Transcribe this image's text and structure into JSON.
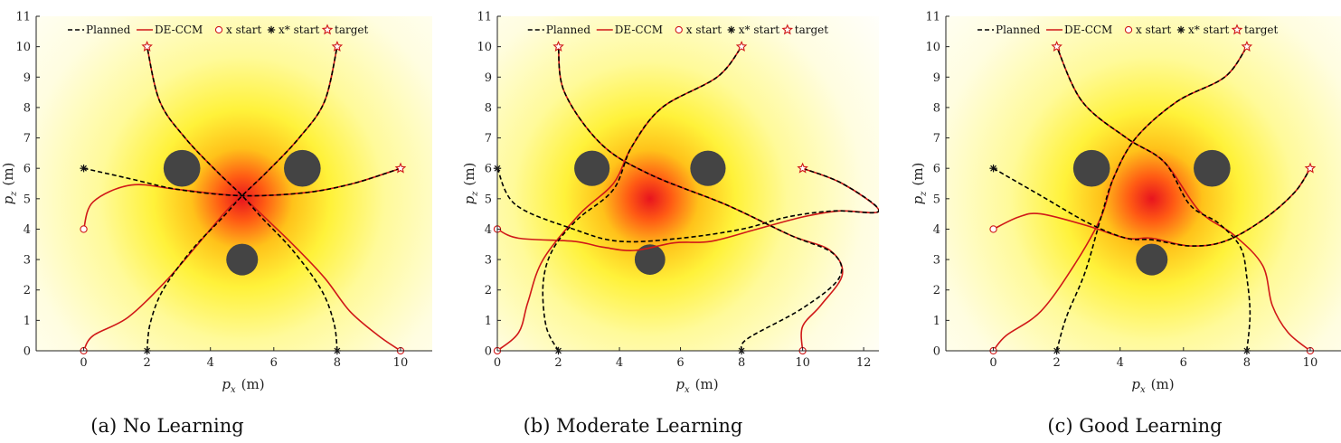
{
  "chart_data": [
    {
      "type": "line",
      "caption": "(a) No Learning",
      "xlabel": {
        "main": "p",
        "sub": "x",
        "unit": "(m)"
      },
      "ylabel": {
        "main": "p",
        "sub": "z",
        "unit": "(m)"
      },
      "xlim": [
        -1.5,
        11
      ],
      "ylim": [
        0,
        11
      ],
      "xticks": [
        "0",
        "2",
        "4",
        "6",
        "8",
        "10"
      ],
      "xtick_values": [
        0,
        2,
        4,
        6,
        8,
        10
      ],
      "yticks": [
        "0",
        "1",
        "2",
        "3",
        "4",
        "5",
        "6",
        "7",
        "8",
        "9",
        "10",
        "11"
      ],
      "legend": {
        "placement": "top",
        "entries": [
          "Planned",
          "DE-CCM",
          "x start",
          "x* start",
          "target"
        ]
      },
      "heat_center": [
        5,
        5
      ],
      "obstacles": [
        {
          "x": 3.1,
          "y": 6,
          "r": 0.58
        },
        {
          "x": 6.9,
          "y": 6,
          "r": 0.58
        },
        {
          "x": 5,
          "y": 3,
          "r": 0.5
        }
      ],
      "targets": [
        [
          2,
          10
        ],
        [
          8,
          10
        ],
        [
          10,
          6
        ]
      ],
      "x_starts": [
        [
          0,
          0
        ],
        [
          0,
          4
        ],
        [
          10,
          0
        ]
      ],
      "xstar_starts": [
        [
          2,
          0
        ],
        [
          8,
          0
        ],
        [
          0,
          6
        ]
      ],
      "planned": [
        [
          [
            2,
            0
          ],
          [
            2.1,
            0.9
          ],
          [
            2.5,
            2
          ],
          [
            3.4,
            3.3
          ],
          [
            4.4,
            4.4
          ],
          [
            5,
            5.1
          ],
          [
            5.8,
            5.9
          ],
          [
            6.8,
            7
          ],
          [
            7.6,
            8.2
          ],
          [
            8,
            10
          ]
        ],
        [
          [
            8,
            0
          ],
          [
            7.9,
            0.9
          ],
          [
            7.5,
            2
          ],
          [
            6.6,
            3.3
          ],
          [
            5.6,
            4.4
          ],
          [
            5,
            5.1
          ],
          [
            4.2,
            5.9
          ],
          [
            3.2,
            7
          ],
          [
            2.4,
            8.2
          ],
          [
            2,
            10
          ]
        ],
        [
          [
            0,
            6
          ],
          [
            1.5,
            5.65
          ],
          [
            3,
            5.3
          ],
          [
            5,
            5.1
          ],
          [
            7,
            5.2
          ],
          [
            8.5,
            5.5
          ],
          [
            10,
            6
          ]
        ]
      ],
      "actual": [
        [
          [
            0,
            0
          ],
          [
            0.3,
            0.5
          ],
          [
            1.4,
            1.1
          ],
          [
            2.6,
            2.3
          ],
          [
            3.6,
            3.5
          ],
          [
            4.5,
            4.6
          ],
          [
            5,
            5.1
          ],
          [
            5.8,
            5.9
          ],
          [
            6.8,
            7
          ],
          [
            7.6,
            8.2
          ],
          [
            8,
            10
          ]
        ],
        [
          [
            10,
            0
          ],
          [
            9.3,
            0.5
          ],
          [
            8.4,
            1.3
          ],
          [
            7.6,
            2.4
          ],
          [
            6.6,
            3.5
          ],
          [
            5.6,
            4.5
          ],
          [
            5,
            5.1
          ],
          [
            4.2,
            5.9
          ],
          [
            3.2,
            7
          ],
          [
            2.4,
            8.2
          ],
          [
            2,
            10
          ]
        ],
        [
          [
            0,
            4
          ],
          [
            0.3,
            4.9
          ],
          [
            1.5,
            5.45
          ],
          [
            3,
            5.3
          ],
          [
            5,
            5.1
          ],
          [
            7,
            5.2
          ],
          [
            8.5,
            5.5
          ],
          [
            10,
            6
          ]
        ]
      ]
    },
    {
      "type": "line",
      "caption": "(b) Moderate Learning",
      "xlabel": {
        "main": "p",
        "sub": "x",
        "unit": "(m)"
      },
      "ylabel": {
        "main": "p",
        "sub": "z",
        "unit": "(m)"
      },
      "xlim": [
        0,
        12.5
      ],
      "ylim": [
        0,
        11
      ],
      "xticks": [
        "0",
        "2",
        "4",
        "6",
        "8",
        "10",
        "12"
      ],
      "xtick_values": [
        0,
        2,
        4,
        6,
        8,
        10,
        12
      ],
      "yticks": [
        "0",
        "1",
        "2",
        "3",
        "4",
        "5",
        "6",
        "7",
        "8",
        "9",
        "10",
        "11"
      ],
      "legend": {
        "placement": "top",
        "entries": [
          "Planned",
          "DE-CCM",
          "x start",
          "x* start",
          "target"
        ]
      },
      "heat_center": [
        5,
        5
      ],
      "obstacles": [
        {
          "x": 3.1,
          "y": 6,
          "r": 0.58
        },
        {
          "x": 6.9,
          "y": 6,
          "r": 0.58
        },
        {
          "x": 5,
          "y": 3,
          "r": 0.5
        }
      ],
      "targets": [
        [
          2,
          10
        ],
        [
          8,
          10
        ],
        [
          10,
          6
        ]
      ],
      "x_starts": [
        [
          0,
          0
        ],
        [
          0,
          4
        ],
        [
          10,
          0
        ]
      ],
      "xstar_starts": [
        [
          2,
          0
        ],
        [
          8,
          0
        ],
        [
          0,
          6
        ]
      ],
      "planned": [
        [
          [
            2,
            0
          ],
          [
            1.6,
            0.8
          ],
          [
            1.5,
            2.2
          ],
          [
            1.8,
            3.3
          ],
          [
            2.6,
            4.3
          ],
          [
            3.8,
            5.3
          ],
          [
            4.4,
            6.7
          ],
          [
            5.4,
            8
          ],
          [
            7.2,
            9
          ],
          [
            8,
            10
          ]
        ],
        [
          [
            8,
            0
          ],
          [
            8.2,
            0.4
          ],
          [
            10,
            1.4
          ],
          [
            11.2,
            2.4
          ],
          [
            11,
            3.2
          ],
          [
            9.6,
            3.8
          ],
          [
            7.5,
            4.8
          ],
          [
            5,
            5.8
          ],
          [
            3.4,
            6.8
          ],
          [
            2.2,
            8.5
          ],
          [
            2,
            10
          ]
        ],
        [
          [
            0,
            6
          ],
          [
            0.6,
            4.8
          ],
          [
            2.5,
            4
          ],
          [
            4,
            3.6
          ],
          [
            6,
            3.7
          ],
          [
            8,
            4.0
          ],
          [
            9.5,
            4.4
          ],
          [
            11,
            4.6
          ],
          [
            12.5,
            4.6
          ],
          [
            11.3,
            5.5
          ],
          [
            10,
            6
          ]
        ]
      ],
      "actual": [
        [
          [
            0,
            0
          ],
          [
            0.7,
            0.6
          ],
          [
            1,
            1.6
          ],
          [
            1.5,
            3
          ],
          [
            2.7,
            4.5
          ],
          [
            3.8,
            5.5
          ],
          [
            4.4,
            6.7
          ],
          [
            5.4,
            8
          ],
          [
            7.2,
            9
          ],
          [
            8,
            10
          ]
        ],
        [
          [
            10,
            0
          ],
          [
            10,
            0.8
          ],
          [
            10.6,
            1.5
          ],
          [
            11.3,
            2.5
          ],
          [
            10.9,
            3.3
          ],
          [
            9.6,
            3.8
          ],
          [
            7.5,
            4.8
          ],
          [
            5,
            5.8
          ],
          [
            3.4,
            6.8
          ],
          [
            2.2,
            8.5
          ],
          [
            2,
            10
          ]
        ],
        [
          [
            0,
            4
          ],
          [
            0.7,
            3.7
          ],
          [
            2.5,
            3.6
          ],
          [
            3.5,
            3.4
          ],
          [
            4.5,
            3.3
          ],
          [
            5.8,
            3.55
          ],
          [
            7,
            3.6
          ],
          [
            8.5,
            4.0
          ],
          [
            10,
            4.4
          ],
          [
            11.2,
            4.6
          ],
          [
            12.5,
            4.6
          ],
          [
            11.3,
            5.5
          ],
          [
            10,
            6
          ]
        ]
      ]
    },
    {
      "type": "line",
      "caption": "(c) Good Learning",
      "xlabel": {
        "main": "p",
        "sub": "x",
        "unit": "(m)"
      },
      "ylabel": {
        "main": "p",
        "sub": "z",
        "unit": "(m)"
      },
      "xlim": [
        -1.5,
        11
      ],
      "ylim": [
        0,
        11
      ],
      "xticks": [
        "0",
        "2",
        "4",
        "6",
        "8",
        "10"
      ],
      "xtick_values": [
        0,
        2,
        4,
        6,
        8,
        10
      ],
      "yticks": [
        "0",
        "1",
        "2",
        "3",
        "4",
        "5",
        "6",
        "7",
        "8",
        "9",
        "10",
        "11"
      ],
      "legend": {
        "placement": "top",
        "entries": [
          "Planned",
          "DE-CCM",
          "x start",
          "x* start",
          "target"
        ]
      },
      "heat_center": [
        5,
        5
      ],
      "obstacles": [
        {
          "x": 3.1,
          "y": 6,
          "r": 0.58
        },
        {
          "x": 6.9,
          "y": 6,
          "r": 0.58
        },
        {
          "x": 5,
          "y": 3,
          "r": 0.5
        }
      ],
      "targets": [
        [
          2,
          10
        ],
        [
          8,
          10
        ],
        [
          10,
          6
        ]
      ],
      "x_starts": [
        [
          0,
          0
        ],
        [
          0,
          4
        ],
        [
          10,
          0
        ]
      ],
      "xstar_starts": [
        [
          2,
          0
        ],
        [
          8,
          0
        ],
        [
          0,
          6
        ]
      ],
      "planned": [
        [
          [
            2,
            0
          ],
          [
            2.3,
            1.1
          ],
          [
            2.9,
            2.6
          ],
          [
            3.4,
            4.4
          ],
          [
            3.8,
            5.7
          ],
          [
            4.5,
            7
          ],
          [
            5.8,
            8.2
          ],
          [
            7.3,
            9
          ],
          [
            8,
            10
          ]
        ],
        [
          [
            8,
            0
          ],
          [
            8.1,
            1.2
          ],
          [
            8.0,
            2.4
          ],
          [
            7.8,
            3.4
          ],
          [
            7.1,
            4.2
          ],
          [
            6.2,
            4.8
          ],
          [
            5.4,
            6.2
          ],
          [
            4.2,
            7
          ],
          [
            2.8,
            8.2
          ],
          [
            2,
            10
          ]
        ],
        [
          [
            0,
            6
          ],
          [
            1.5,
            5.1
          ],
          [
            3,
            4.2
          ],
          [
            4.2,
            3.7
          ],
          [
            5,
            3.65
          ],
          [
            6.2,
            3.45
          ],
          [
            7.3,
            3.6
          ],
          [
            8.5,
            4.3
          ],
          [
            9.5,
            5.2
          ],
          [
            10,
            6
          ]
        ]
      ],
      "actual": [
        [
          [
            0,
            0
          ],
          [
            0.4,
            0.5
          ],
          [
            1.5,
            1.3
          ],
          [
            2.6,
            2.9
          ],
          [
            3.4,
            4.4
          ],
          [
            3.8,
            5.7
          ],
          [
            4.5,
            7
          ],
          [
            5.8,
            8.2
          ],
          [
            7.3,
            9
          ],
          [
            8,
            10
          ]
        ],
        [
          [
            10,
            0
          ],
          [
            9.3,
            0.6
          ],
          [
            8.8,
            1.5
          ],
          [
            8.5,
            2.8
          ],
          [
            7.6,
            3.8
          ],
          [
            6.5,
            4.6
          ],
          [
            5.4,
            6.2
          ],
          [
            4.2,
            7
          ],
          [
            2.8,
            8.2
          ],
          [
            2,
            10
          ]
        ],
        [
          [
            0,
            4
          ],
          [
            0.8,
            4.4
          ],
          [
            1.5,
            4.5
          ],
          [
            3,
            4.1
          ],
          [
            4.2,
            3.7
          ],
          [
            5,
            3.7
          ],
          [
            6.2,
            3.45
          ],
          [
            7.3,
            3.6
          ],
          [
            8.5,
            4.3
          ],
          [
            9.5,
            5.2
          ],
          [
            10,
            6
          ]
        ]
      ]
    }
  ]
}
